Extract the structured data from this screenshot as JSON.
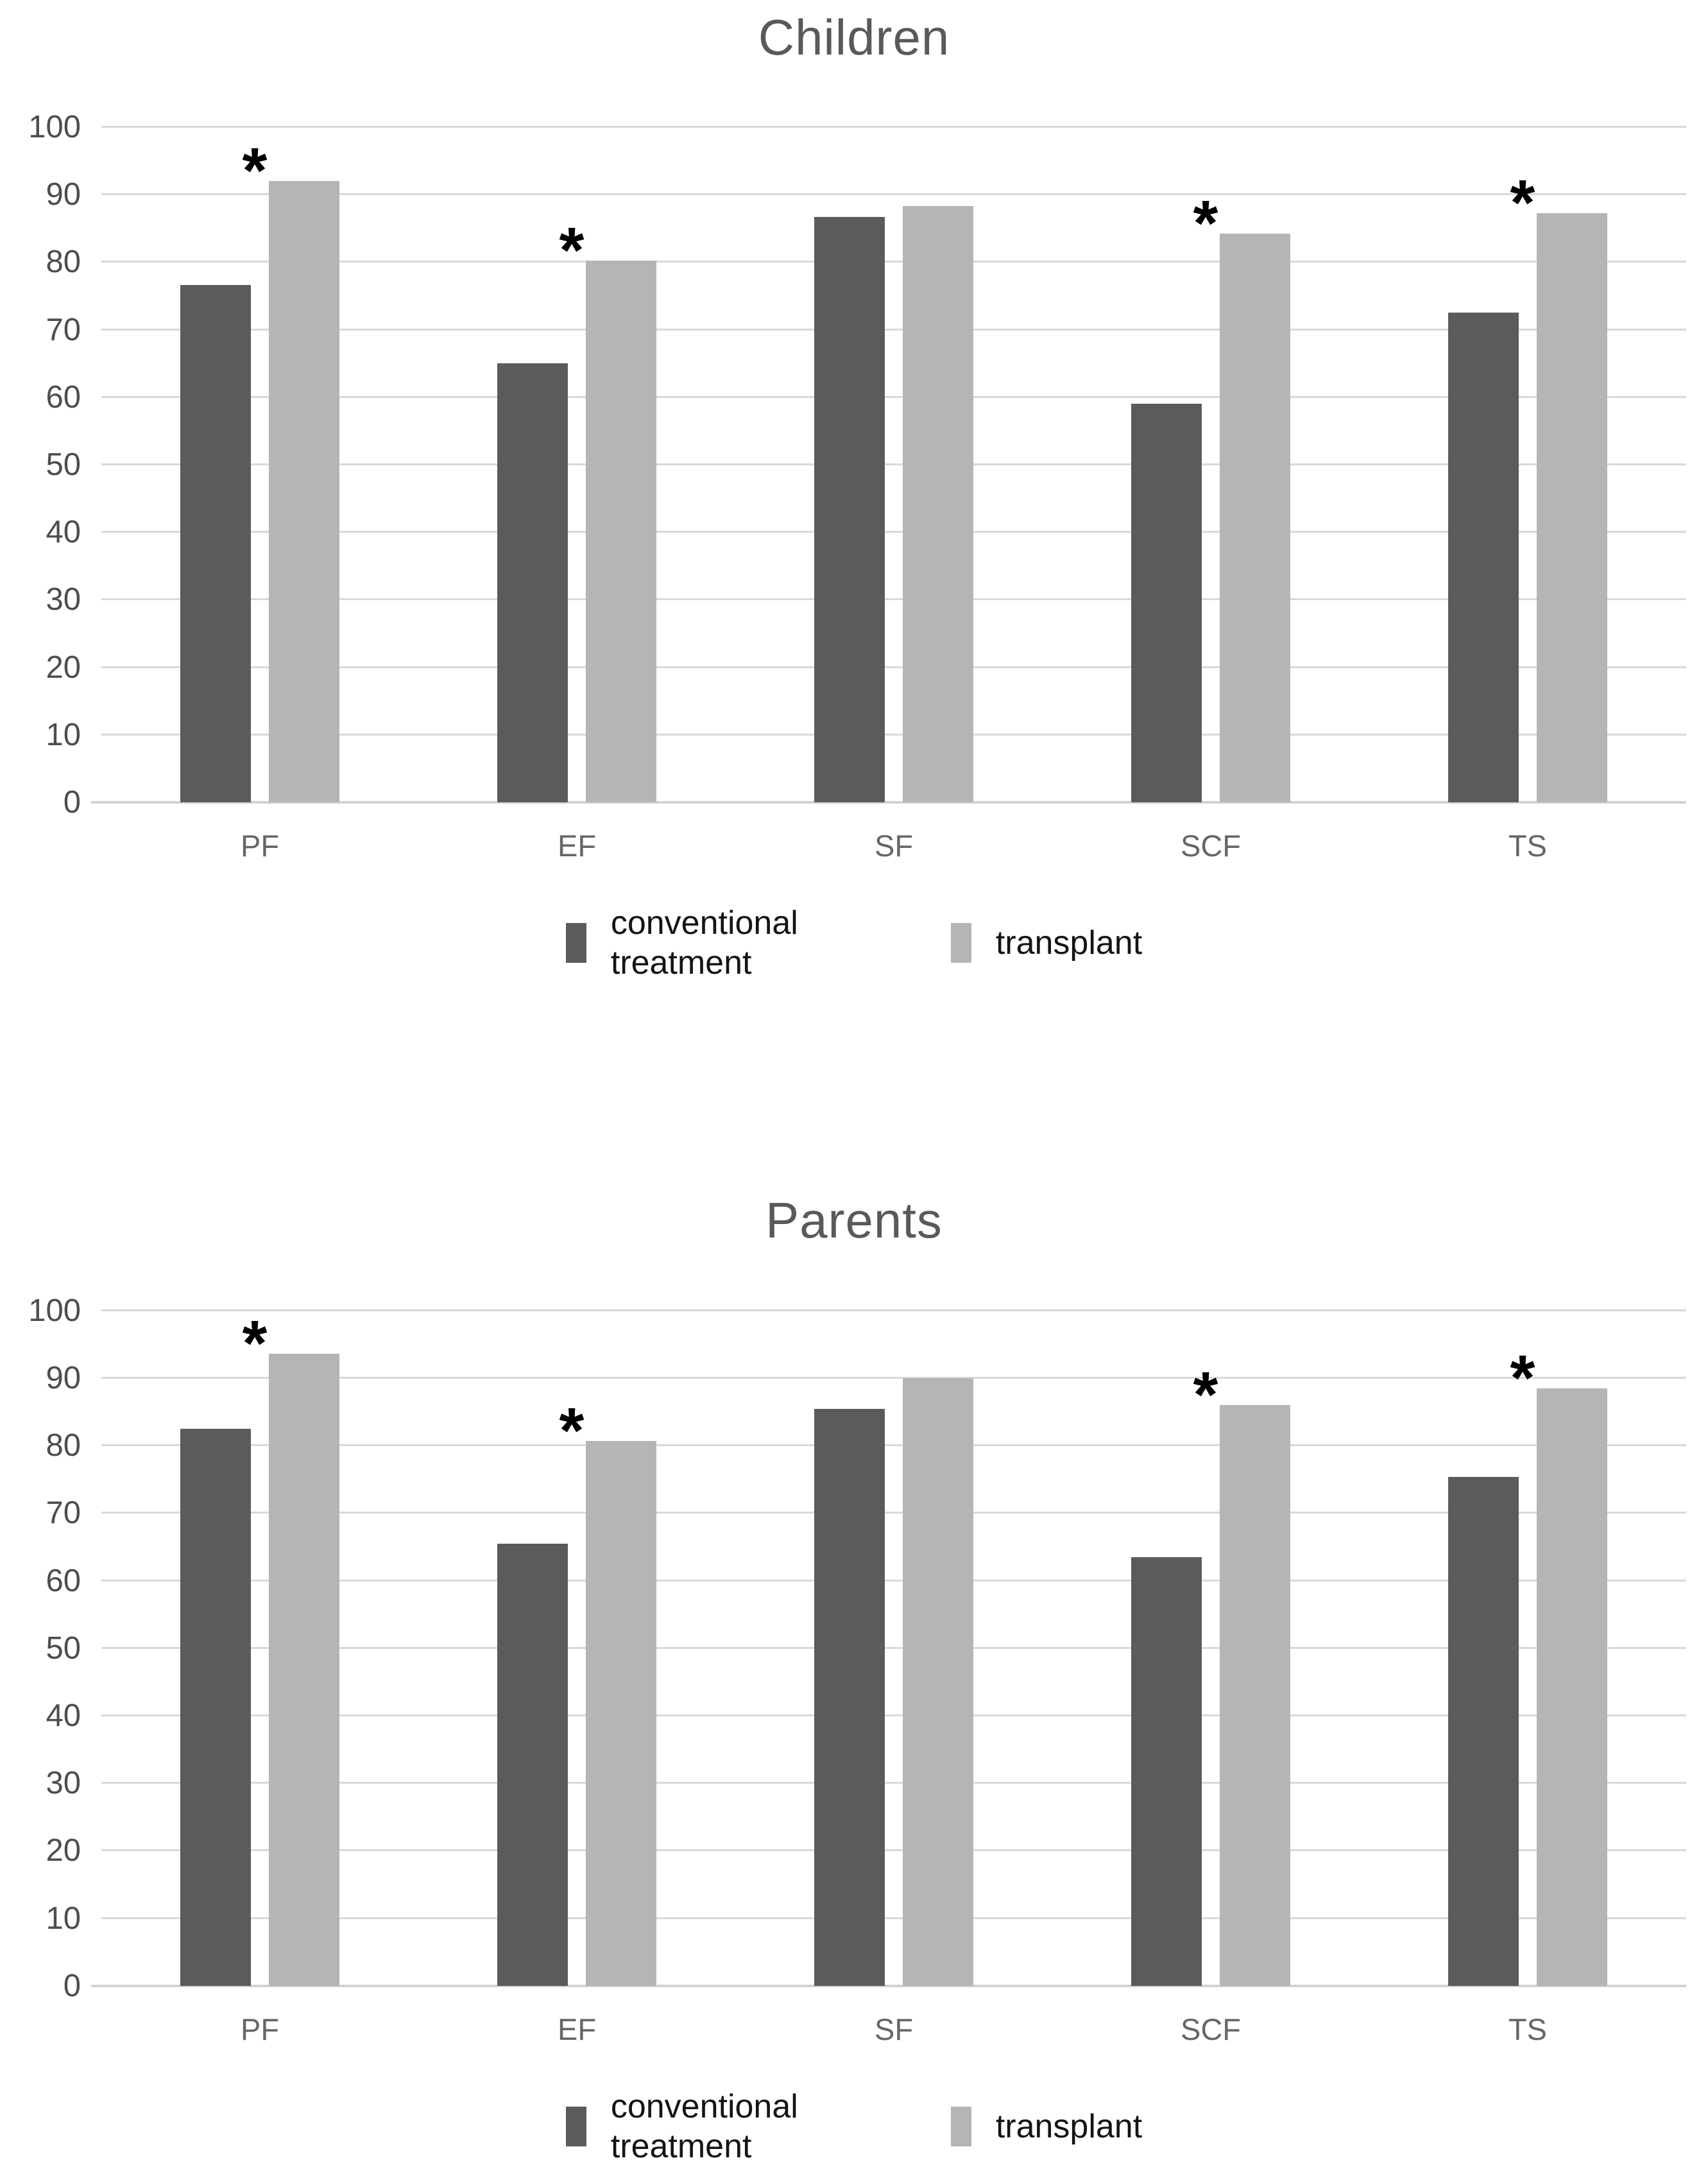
{
  "figure": {
    "significance_symbol": "*",
    "colors": {
      "background": "#ffffff",
      "bar_conventional_treatment": "#5b5b5b",
      "bar_transplant": "#b5b5b5",
      "gridline": "#d9d9d9",
      "axis_line": "#d2d2d2",
      "title_text": "#595959",
      "tick_text": "#4d4d4d",
      "category_text": "#666666",
      "legend_text": "#141414",
      "significance_color": "#000000"
    }
  },
  "chart_data": [
    {
      "type": "bar",
      "title": "Children",
      "categories": [
        "PF",
        "EF",
        "SF",
        "SCF",
        "TS"
      ],
      "series": [
        {
          "name": "conventional treatment",
          "values": [
            76.6,
            65.0,
            86.7,
            59.0,
            72.5
          ]
        },
        {
          "name": "transplant",
          "values": [
            92.0,
            80.2,
            88.3,
            84.2,
            87.3
          ]
        }
      ],
      "significant_categories": [
        "PF",
        "EF",
        "SCF",
        "TS"
      ],
      "ylim": [
        0,
        100
      ],
      "yticks": [
        0,
        10,
        20,
        30,
        40,
        50,
        60,
        70,
        80,
        90,
        100
      ],
      "grid": true,
      "legend_position": "bottom",
      "legend_labels": [
        "conventional treatment",
        "transplant"
      ]
    },
    {
      "type": "bar",
      "title": "Parents",
      "categories": [
        "PF",
        "EF",
        "SF",
        "SCF",
        "TS"
      ],
      "series": [
        {
          "name": "conventional treatment",
          "values": [
            82.5,
            65.5,
            85.4,
            63.5,
            75.4
          ]
        },
        {
          "name": "transplant",
          "values": [
            93.6,
            80.7,
            90.0,
            86.0,
            88.5
          ]
        }
      ],
      "significant_categories": [
        "PF",
        "EF",
        "SCF",
        "TS"
      ],
      "ylim": [
        0,
        100
      ],
      "yticks": [
        0,
        10,
        20,
        30,
        40,
        50,
        60,
        70,
        80,
        90,
        100
      ],
      "grid": true,
      "legend_position": "bottom",
      "legend_labels": [
        "conventional treatment",
        "transplant"
      ]
    }
  ]
}
